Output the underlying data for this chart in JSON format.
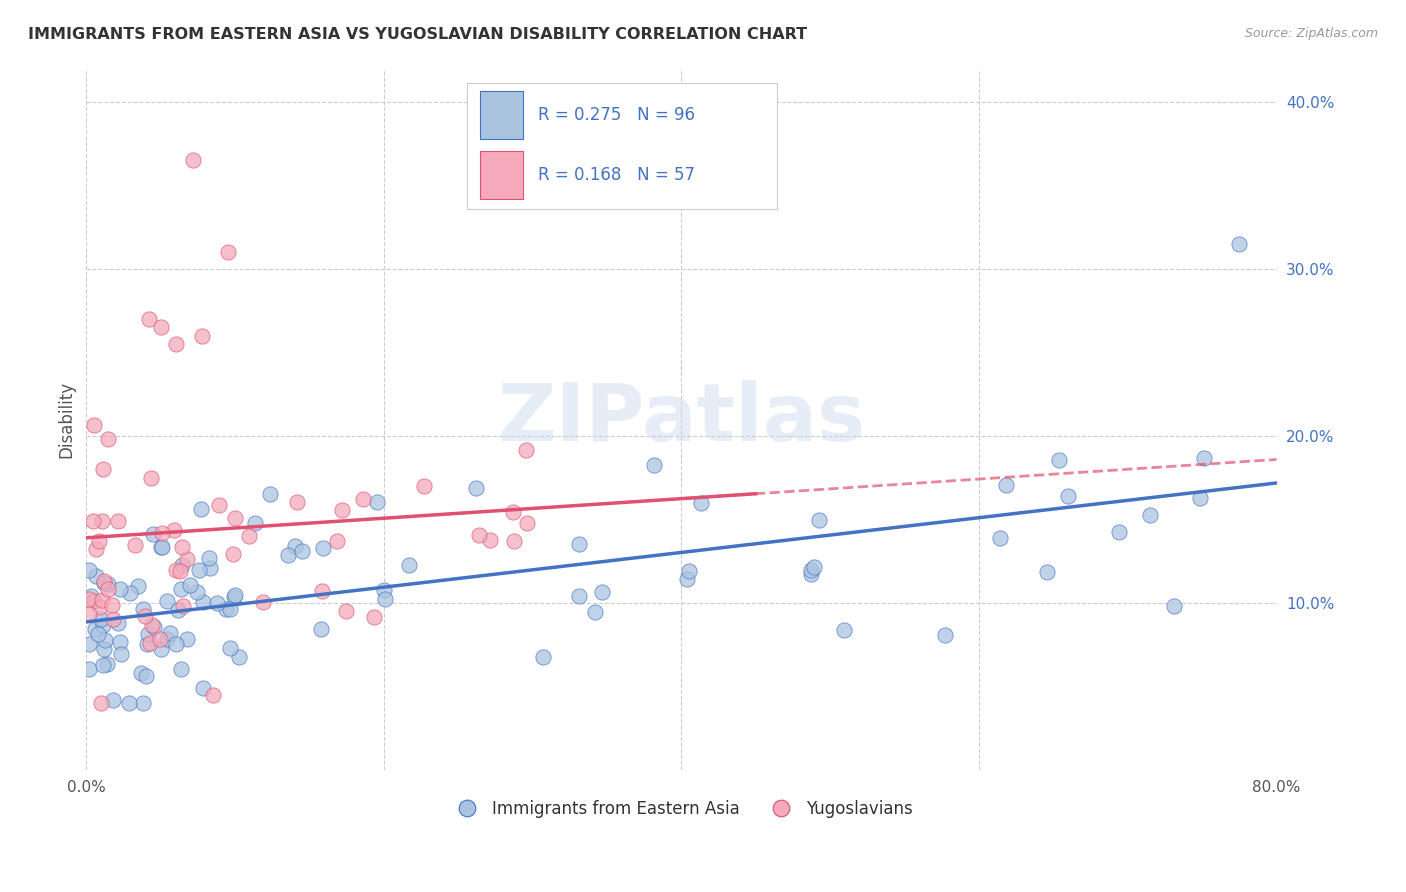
{
  "title": "IMMIGRANTS FROM EASTERN ASIA VS YUGOSLAVIAN DISABILITY CORRELATION CHART",
  "source": "Source: ZipAtlas.com",
  "xlabel": "",
  "ylabel": "Disability",
  "watermark": "ZIPatlas",
  "x_min": 0.0,
  "x_max": 0.8,
  "y_min": 0.0,
  "y_max": 0.42,
  "x_ticks": [
    0.0,
    0.2,
    0.4,
    0.6,
    0.8
  ],
  "x_tick_labels": [
    "0.0%",
    "",
    "",
    "",
    "80.0%"
  ],
  "y_ticks": [
    0.1,
    0.2,
    0.3,
    0.4
  ],
  "y_tick_labels": [
    "10.0%",
    "20.0%",
    "30.0%",
    "40.0%"
  ],
  "series1_name": "Immigrants from Eastern Asia",
  "series1_color": "#aac4e0",
  "series1_R": "0.275",
  "series1_N": "96",
  "series2_name": "Yugoslavians",
  "series2_color": "#f4aabb",
  "series2_R": "0.168",
  "series2_N": "57",
  "line1_color": "#4472c4",
  "line2_color": "#e05070",
  "background_color": "#ffffff",
  "grid_color": "#cccccc",
  "title_color": "#333333",
  "label_color": "#4472c4"
}
